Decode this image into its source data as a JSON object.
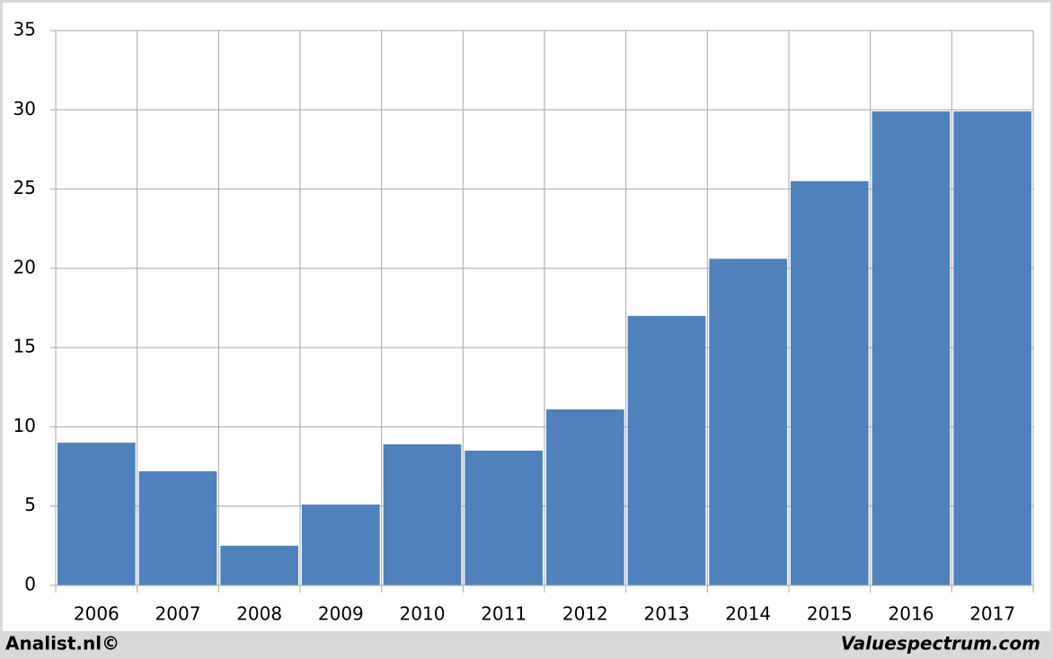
{
  "chart_data": {
    "type": "bar",
    "categories": [
      "2006",
      "2007",
      "2008",
      "2009",
      "2010",
      "2011",
      "2012",
      "2013",
      "2014",
      "2015",
      "2016",
      "2017"
    ],
    "values": [
      9.0,
      7.2,
      2.5,
      5.1,
      8.9,
      8.5,
      11.1,
      17.0,
      20.6,
      25.5,
      29.9,
      29.9
    ],
    "color": "#4f81bd",
    "ylim": [
      0,
      35
    ],
    "yticks": [
      0,
      5,
      10,
      15,
      20,
      25,
      30,
      35
    ],
    "grid": true
  },
  "footer": {
    "left": "Analist.nl©",
    "right": "Valuespectrum.com"
  }
}
